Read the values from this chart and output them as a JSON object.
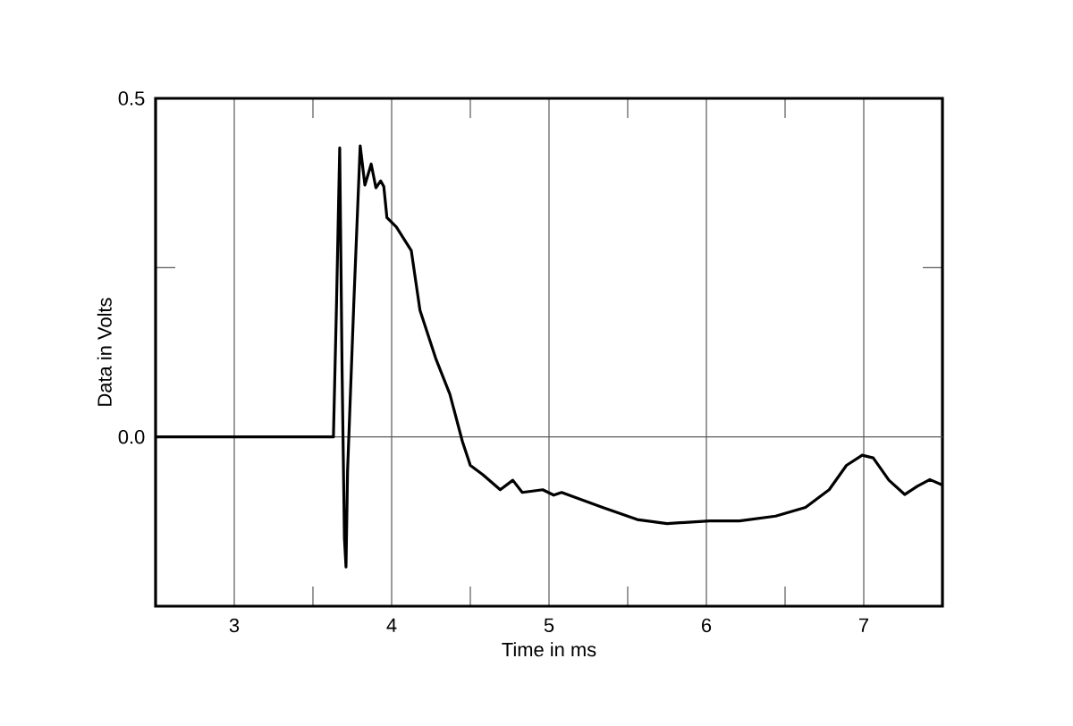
{
  "chart_data": {
    "type": "line",
    "xlabel": "Time in ms",
    "ylabel": "Data in Volts",
    "x": [
      2.5,
      3.63,
      3.65,
      3.67,
      3.685,
      3.7,
      3.71,
      3.72,
      3.76,
      3.8,
      3.83,
      3.87,
      3.9,
      3.93,
      3.95,
      3.97,
      4.03,
      4.125,
      4.18,
      4.28,
      4.37,
      4.45,
      4.5,
      4.58,
      4.69,
      4.77,
      4.83,
      4.96,
      5.03,
      5.08,
      5.34,
      5.56,
      5.75,
      6.02,
      6.21,
      6.44,
      6.63,
      6.78,
      6.89,
      6.99,
      7.06,
      7.16,
      7.26,
      7.34,
      7.42,
      7.5
    ],
    "series": [
      {
        "color": "#000000",
        "values": [
          0,
          0,
          0.2,
          0.427,
          0.1,
          -0.15,
          -0.192,
          -0.05,
          0.2,
          0.43,
          0.372,
          0.403,
          0.368,
          0.378,
          0.37,
          0.324,
          0.31,
          0.275,
          0.187,
          0.116,
          0.063,
          -0.007,
          -0.042,
          -0.056,
          -0.078,
          -0.064,
          -0.082,
          -0.078,
          -0.086,
          -0.082,
          -0.104,
          -0.122,
          -0.128,
          -0.124,
          -0.124,
          -0.117,
          -0.104,
          -0.078,
          -0.042,
          -0.027,
          -0.031,
          -0.064,
          -0.085,
          -0.073,
          -0.063,
          -0.071
        ]
      }
    ],
    "xlim": [
      2.5,
      7.5
    ],
    "ylim": [
      -0.25,
      0.5
    ],
    "xticks": [
      3,
      {
        "value": 3.5,
        "label": null
      },
      4,
      {
        "value": 4.5,
        "label": null
      },
      5,
      {
        "value": 5.5,
        "label": null
      },
      6,
      {
        "value": 6.5,
        "label": null
      },
      7
    ],
    "yticks": [
      {
        "value": 0,
        "label": "0.0"
      },
      {
        "value": 0.25,
        "label": null
      },
      {
        "value": 0.5,
        "label": "0.5"
      }
    ],
    "grid": "x",
    "ref_lines": [
      {
        "axis": "y",
        "value": 0
      }
    ],
    "line_style": "solid",
    "marker": "none"
  }
}
